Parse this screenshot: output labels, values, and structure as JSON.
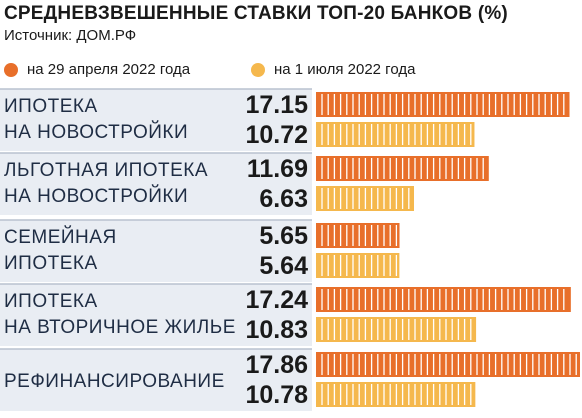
{
  "title": "СРЕДНЕВЗВЕШЕННЫЕ СТАВКИ ТОП-20 БАНКОВ (%)",
  "source": "Источник: ДОМ.РФ",
  "colors": {
    "series1": "#e86f2a",
    "series2": "#f5b84d",
    "row_band": "#e9edf3"
  },
  "chart_data": {
    "type": "bar",
    "orientation": "horizontal",
    "title": "СРЕДНЕВЗВЕШЕННЫЕ СТАВКИ ТОП-20 БАНКОВ (%)",
    "categories": [
      [
        "ИПОТЕКА",
        "НА НОВОСТРОЙКИ"
      ],
      [
        "ЛЬГОТНАЯ ИПОТЕКА",
        "НА НОВОСТРОЙКИ"
      ],
      [
        "СЕМЕЙНАЯ",
        "ИПОТЕКА"
      ],
      [
        "ИПОТЕКА",
        "НА ВТОРИЧНОЕ ЖИЛЬЕ"
      ],
      [
        "РЕФИНАНСИРОВАНИЕ"
      ]
    ],
    "series": [
      {
        "name": "на 29 апреля 2022 года",
        "values": [
          17.15,
          11.69,
          5.65,
          17.24,
          17.86
        ]
      },
      {
        "name": "на 1 июля 2022 года",
        "values": [
          10.72,
          6.63,
          5.64,
          10.83,
          10.78
        ]
      }
    ],
    "value_labels": [
      [
        "17.15",
        "10.72"
      ],
      [
        "11.69",
        "6.63"
      ],
      [
        "5.65",
        "5.64"
      ],
      [
        "17.24",
        "10.83"
      ],
      [
        "17.86",
        "10.78"
      ]
    ],
    "xlim": [
      0,
      17.86
    ],
    "legend": "top-left",
    "grid": false
  }
}
